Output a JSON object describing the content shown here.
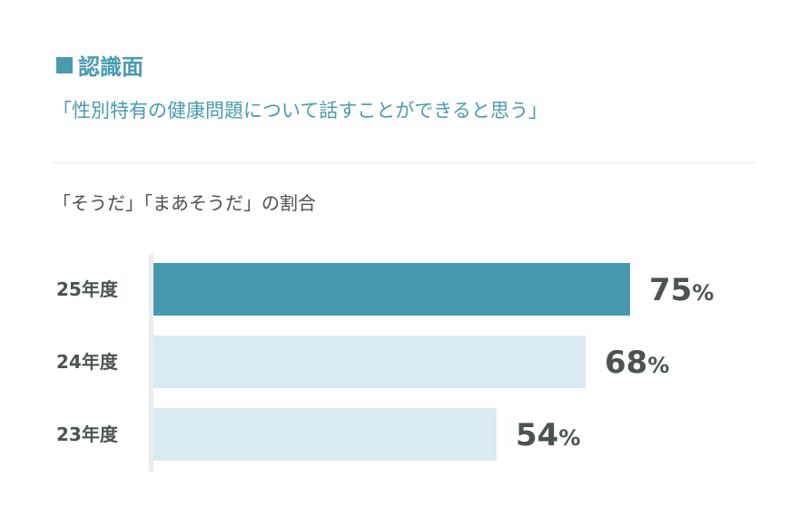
{
  "header": {
    "title": "認識面",
    "subtitle": "「性別特有の健康問題について話すことができると思う」"
  },
  "note": "「そうだ」「まあそうだ」の割合",
  "colors": {
    "accent": "#4a9bb0",
    "bar_current": "#4799b0",
    "bar_past": "#d9eaf0",
    "text_dark": "#4b5450"
  },
  "chart_data": {
    "type": "bar",
    "orientation": "horizontal",
    "categories": [
      "25年度",
      "24年度",
      "23年度"
    ],
    "values": [
      75,
      68,
      54
    ],
    "unit": "%",
    "xlim": [
      0,
      100
    ],
    "grid": false
  }
}
